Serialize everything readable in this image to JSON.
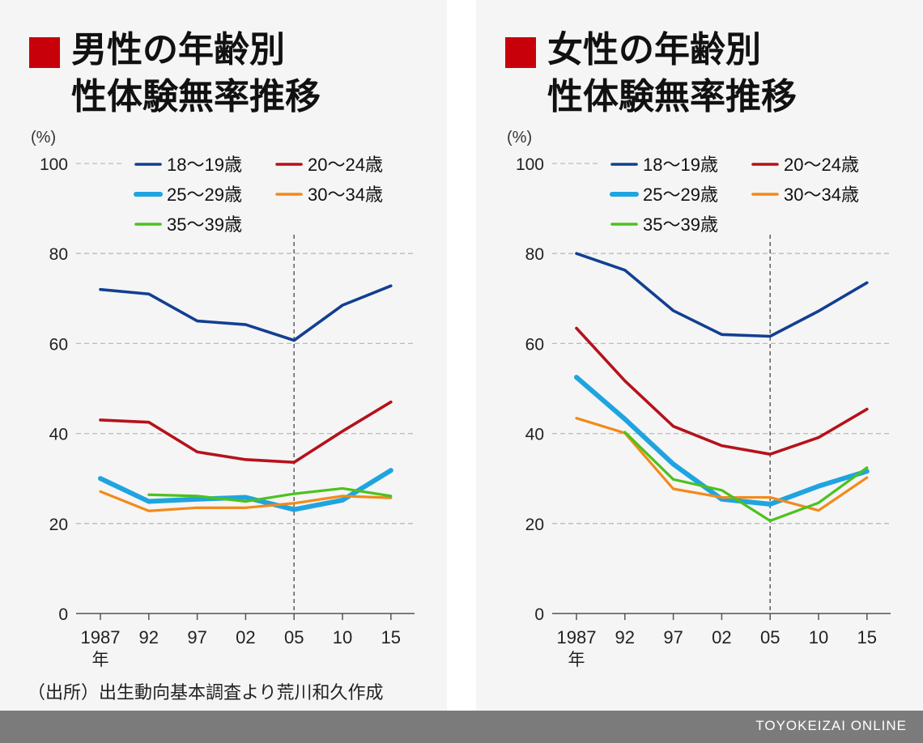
{
  "footer": {
    "brand": "TOYOKEIZAI ONLINE"
  },
  "source_note": "（出所）出生動向基本調査より荒川和久作成",
  "colors": {
    "title_marker": "#c8000a",
    "series": {
      "18〜19歳": "#123f91",
      "20〜24歳": "#b5121b",
      "25〜29歳": "#1fa4e0",
      "30〜34歳": "#f28a1a",
      "35〜39歳": "#4cc21d"
    }
  },
  "chart_data": [
    {
      "type": "line",
      "title_lines": [
        "男性の年齢別",
        "性体験無率推移"
      ],
      "ylabel": "(%)",
      "ylim": [
        0,
        100
      ],
      "yticks": [
        0,
        20,
        40,
        60,
        80,
        100
      ],
      "categories": [
        "1987",
        "92",
        "97",
        "02",
        "05",
        "10",
        "15"
      ],
      "x_unit_label": "年",
      "reference_line": "05",
      "grid": "horizontal dashed",
      "series": [
        {
          "name": "18〜19歳",
          "values": [
            72,
            71,
            65,
            64.2,
            60.7,
            68.5,
            72.8
          ]
        },
        {
          "name": "20〜24歳",
          "values": [
            43,
            42.5,
            35.9,
            34.2,
            33.6,
            40.5,
            47
          ]
        },
        {
          "name": "25〜29歳",
          "values": [
            30,
            24.9,
            25.4,
            25.8,
            23.1,
            25.2,
            31.8
          ]
        },
        {
          "name": "30〜34歳",
          "values": [
            27.1,
            22.8,
            23.5,
            23.5,
            24.5,
            26.1,
            25.7
          ]
        },
        {
          "name": "35〜39歳",
          "values": [
            null,
            26.4,
            26.1,
            24.9,
            26.6,
            27.8,
            26.1
          ]
        }
      ]
    },
    {
      "type": "line",
      "title_lines": [
        "女性の年齢別",
        "性体験無率推移"
      ],
      "ylabel": "(%)",
      "ylim": [
        0,
        100
      ],
      "yticks": [
        0,
        20,
        40,
        60,
        80,
        100
      ],
      "categories": [
        "1987",
        "92",
        "97",
        "02",
        "05",
        "10",
        "15"
      ],
      "x_unit_label": "年",
      "reference_line": "05",
      "grid": "horizontal dashed",
      "series": [
        {
          "name": "18〜19歳",
          "values": [
            80,
            76.3,
            67.3,
            62.0,
            61.6,
            67.2,
            73.5
          ]
        },
        {
          "name": "20〜24歳",
          "values": [
            63.4,
            51.7,
            41.6,
            37.3,
            35.4,
            39.1,
            45.4
          ]
        },
        {
          "name": "25〜29歳",
          "values": [
            52.5,
            43.2,
            33.2,
            25.4,
            24.3,
            28.3,
            31.6
          ]
        },
        {
          "name": "30〜34歳",
          "values": [
            43.4,
            40.1,
            27.7,
            25.8,
            25.8,
            22.9,
            30.2
          ]
        },
        {
          "name": "35〜39歳",
          "values": [
            null,
            40.3,
            29.8,
            27.4,
            20.6,
            24.6,
            32.4
          ]
        }
      ]
    }
  ]
}
